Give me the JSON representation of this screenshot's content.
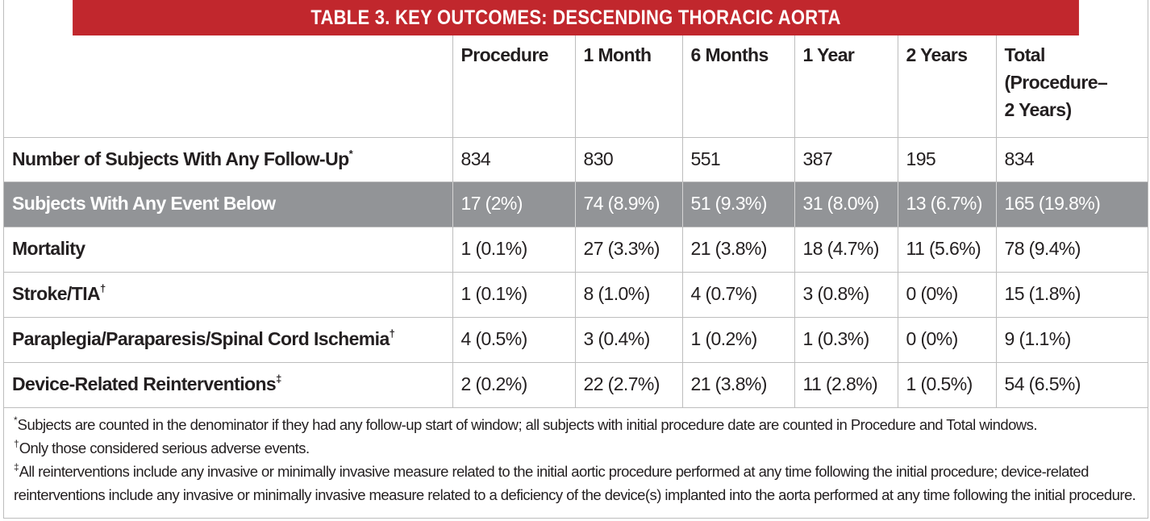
{
  "title": "TABLE 3.  KEY OUTCOMES: DESCENDING THORACIC AORTA",
  "columns": [
    "Procedure",
    "1 Month",
    "6 Months",
    "1 Year",
    "2 Years",
    "Total (Procedure–2 Years)"
  ],
  "total_header_lines": [
    "Total",
    "(Procedure–",
    "2 Years)"
  ],
  "rows": [
    {
      "label": "Number of Subjects With Any Follow-Up",
      "mark": "*",
      "values": [
        "834",
        "830",
        "551",
        "387",
        "195",
        "834"
      ]
    },
    {
      "label": "Subjects With Any Event Below",
      "mark": "",
      "values": [
        "17 (2%)",
        "74 (8.9%)",
        "51 (9.3%)",
        "31 (8.0%)",
        "13 (6.7%)",
        "165 (19.8%)"
      ]
    },
    {
      "label": "Mortality",
      "mark": "",
      "values": [
        "1 (0.1%)",
        "27 (3.3%)",
        "21 (3.8%)",
        "18 (4.7%)",
        "11 (5.6%)",
        "78 (9.4%)"
      ]
    },
    {
      "label": "Stroke/TIA",
      "mark": "†",
      "values": [
        "1 (0.1%)",
        "8 (1.0%)",
        "4 (0.7%)",
        "3 (0.8%)",
        "0 (0%)",
        "15 (1.8%)"
      ]
    },
    {
      "label": "Paraplegia/Paraparesis/Spinal Cord Ischemia",
      "mark": "†",
      "values": [
        "4 (0.5%)",
        "3 (0.4%)",
        "1 (0.2%)",
        "1 (0.3%)",
        "0 (0%)",
        "9 (1.1%)"
      ]
    },
    {
      "label": "Device-Related Reinterventions",
      "mark": "‡",
      "values": [
        "2 (0.2%)",
        "22 (2.7%)",
        "21 (3.8%)",
        "11 (2.8%)",
        "1 (0.5%)",
        "54 (6.5%)"
      ]
    }
  ],
  "footnotes": [
    {
      "mark": "*",
      "text": "Subjects are counted in the denominator if they had any follow-up start of window; all subjects with initial procedure date are counted in Procedure and Total windows."
    },
    {
      "mark": "†",
      "text": "Only those considered serious adverse events."
    },
    {
      "mark": "‡",
      "text": "All reinterventions include any invasive or minimally invasive measure related to the initial aortic procedure performed at any time following the initial procedure; device-related reinterventions include any invasive or minimally invasive measure related to a deficiency of the device(s) implanted into the aorta performed at any time following the initial procedure."
    }
  ],
  "colors": {
    "title_bg": "#c1272d",
    "highlight_bg": "#929497",
    "border": "#bdbdbd"
  }
}
